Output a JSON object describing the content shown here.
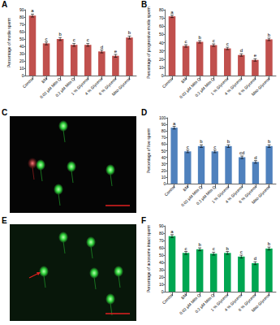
{
  "chart_data": [
    {
      "panel": "A",
      "type": "bar",
      "y_label": "Percentage of motile sperm",
      "categories": [
        "Control",
        "BM",
        "0.02 µM Mito Q",
        "0.2 µM Mito Q",
        "1 % Glycerol",
        "4 % Glycerol",
        "6 % Glycerol",
        "Mito-Glycerol"
      ],
      "values": [
        82,
        44,
        50,
        42,
        42,
        33,
        27,
        52
      ],
      "errors": [
        2,
        2,
        2,
        2,
        2,
        2,
        2,
        2
      ],
      "annotations": [
        "a",
        "c",
        "b",
        "c",
        "c",
        "d",
        "e",
        "b"
      ],
      "color": "#c0504d",
      "ylim": [
        0,
        90
      ],
      "yticks": [
        0,
        10,
        20,
        30,
        40,
        50,
        60,
        70,
        80,
        90
      ],
      "grid": false
    },
    {
      "panel": "B",
      "type": "bar",
      "y_label": "Percentage of progressive motile sperm",
      "categories": [
        "Control",
        "BM",
        "0.02 µM Mito Q",
        "0.2 µM Mito Q",
        "1 % Glycerol",
        "4 % Glycerol",
        "6 % Glycerol",
        "Mito-Glycerol"
      ],
      "values": [
        72,
        36,
        41,
        37,
        33,
        25,
        19,
        44
      ],
      "errors": [
        1.5,
        1.5,
        1.5,
        1.5,
        1.5,
        1.5,
        1.5,
        1.5
      ],
      "annotations": [
        "a",
        "c",
        "b",
        "c",
        "c",
        "d",
        "e",
        "b"
      ],
      "color": "#c0504d",
      "ylim": [
        0,
        80
      ],
      "yticks": [
        0,
        10,
        20,
        30,
        40,
        50,
        60,
        70,
        80
      ],
      "grid": false
    },
    {
      "panel": "D",
      "type": "bar",
      "y_label": "Percentage of live sperm",
      "categories": [
        "Control",
        "BM",
        "0.02 µM Mito Q",
        "0.2 µM Mito Q",
        "1 % Glycerol",
        "4 % Glycerol",
        "6 % Glycerol",
        "Mito-Glycerol"
      ],
      "values": [
        85,
        49,
        57,
        49,
        57,
        40,
        33,
        57
      ],
      "errors": [
        2,
        2,
        2,
        2,
        2,
        2,
        2,
        2
      ],
      "annotations": [
        "a",
        "c",
        "b",
        "c",
        "b",
        "cd",
        "d",
        "b"
      ],
      "color": "#4f81bd",
      "ylim": [
        0,
        100
      ],
      "yticks": [
        0,
        10,
        20,
        30,
        40,
        50,
        60,
        70,
        80,
        90,
        100
      ],
      "grid": false
    },
    {
      "panel": "F",
      "type": "bar",
      "y_label": "Percentage of acrosome intact sperm",
      "categories": [
        "Control",
        "BM",
        "0.02 µM Mito Q",
        "0.2 µM Mito Q",
        "1 % Glycerol",
        "4 % Glycerol",
        "6 % Glycerol",
        "Mito-Glycerol"
      ],
      "values": [
        76,
        53,
        58,
        52,
        53,
        48,
        39,
        59
      ],
      "errors": [
        2,
        2,
        2,
        2,
        2,
        2,
        2,
        2
      ],
      "annotations": [
        "a",
        "c",
        "b",
        "c",
        "b",
        "c",
        "d",
        "b"
      ],
      "color": "#00a651",
      "ylim": [
        0,
        90
      ],
      "yticks": [
        0,
        10,
        20,
        30,
        40,
        50,
        60,
        70,
        80,
        90
      ],
      "grid": false
    }
  ],
  "images": [
    {
      "panel": "C"
    },
    {
      "panel": "E"
    }
  ]
}
